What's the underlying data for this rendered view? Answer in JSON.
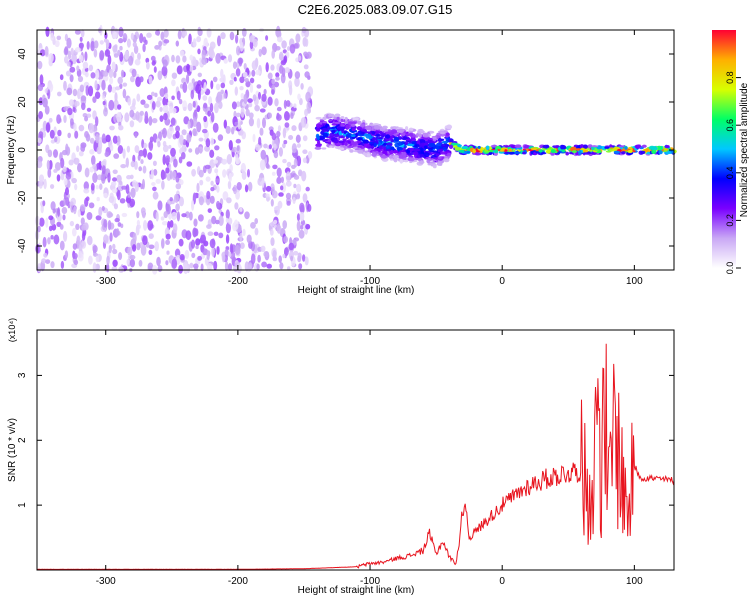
{
  "title": "C2E6.2025.083.09.07.G15",
  "chart_data": [
    {
      "type": "heatmap",
      "xlabel": "Height of straight line (km)",
      "ylabel": "Frequency (Hz)",
      "xlim": [
        -352,
        130
      ],
      "ylim": [
        -50,
        50
      ],
      "x_ticks": [
        -300,
        -200,
        -100,
        0,
        100
      ],
      "y_ticks": [
        -40,
        -20,
        0,
        20,
        40
      ],
      "colorbar": {
        "label": "Normalized spectral amplitude",
        "range": [
          0,
          1
        ],
        "ticks": [
          "0.0",
          "0.2",
          "0.4",
          "0.6",
          "0.8"
        ],
        "colors": [
          "#ffffff",
          "#c9a8f5",
          "#7a00ff",
          "#0000ff",
          "#00c8ff",
          "#00ff66",
          "#d8ff00",
          "#ffb000",
          "#ff0033"
        ]
      },
      "regions": [
        {
          "x_range": [
            -352,
            -145
          ],
          "freq_range": [
            -50,
            50
          ],
          "amplitude": 0.12
        },
        {
          "x_range": [
            -140,
            -40
          ],
          "freq_range": [
            -10,
            15
          ],
          "amplitude": 0.45
        },
        {
          "x_range": [
            -40,
            130
          ],
          "freq_range": [
            -2,
            3
          ],
          "amplitude": 0.95
        }
      ],
      "ridge": {
        "x": [
          -150,
          -130,
          -110,
          -90,
          -70,
          -50,
          -40,
          -30,
          0,
          50,
          100,
          130
        ],
        "y": [
          5,
          8,
          6,
          3,
          2,
          0,
          3,
          0,
          0,
          0,
          0,
          0
        ]
      }
    },
    {
      "type": "line",
      "xlabel": "Height of straight line (km)",
      "ylabel": "SNR (10 * v/v)",
      "y_multiplier": "(x10⁴)",
      "xlim": [
        -352,
        130
      ],
      "ylim": [
        0,
        3.7
      ],
      "x_ticks": [
        -300,
        -200,
        -100,
        0,
        100
      ],
      "y_ticks": [
        1,
        2,
        3
      ],
      "color": "#e8141e",
      "x": [
        -352,
        -300,
        -250,
        -200,
        -150,
        -110,
        -100,
        -90,
        -80,
        -70,
        -60,
        -55,
        -50,
        -45,
        -40,
        -35,
        -32,
        -30,
        -28,
        -25,
        -20,
        -10,
        0,
        10,
        20,
        30,
        40,
        50,
        60,
        65,
        70,
        73,
        75,
        78,
        80,
        85,
        90,
        95,
        100,
        105,
        110,
        120,
        130
      ],
      "y": [
        0.01,
        0.01,
        0.01,
        0.01,
        0.02,
        0.05,
        0.1,
        0.12,
        0.18,
        0.22,
        0.3,
        0.55,
        0.25,
        0.45,
        0.2,
        0.1,
        0.5,
        0.9,
        1.05,
        0.5,
        0.6,
        0.8,
        1.0,
        1.15,
        1.3,
        1.38,
        1.45,
        1.5,
        1.55,
        1.2,
        1.6,
        3.2,
        1.3,
        2.8,
        1.0,
        2.3,
        1.5,
        0.9,
        1.6,
        1.42,
        1.42,
        1.4,
        1.38
      ]
    }
  ]
}
